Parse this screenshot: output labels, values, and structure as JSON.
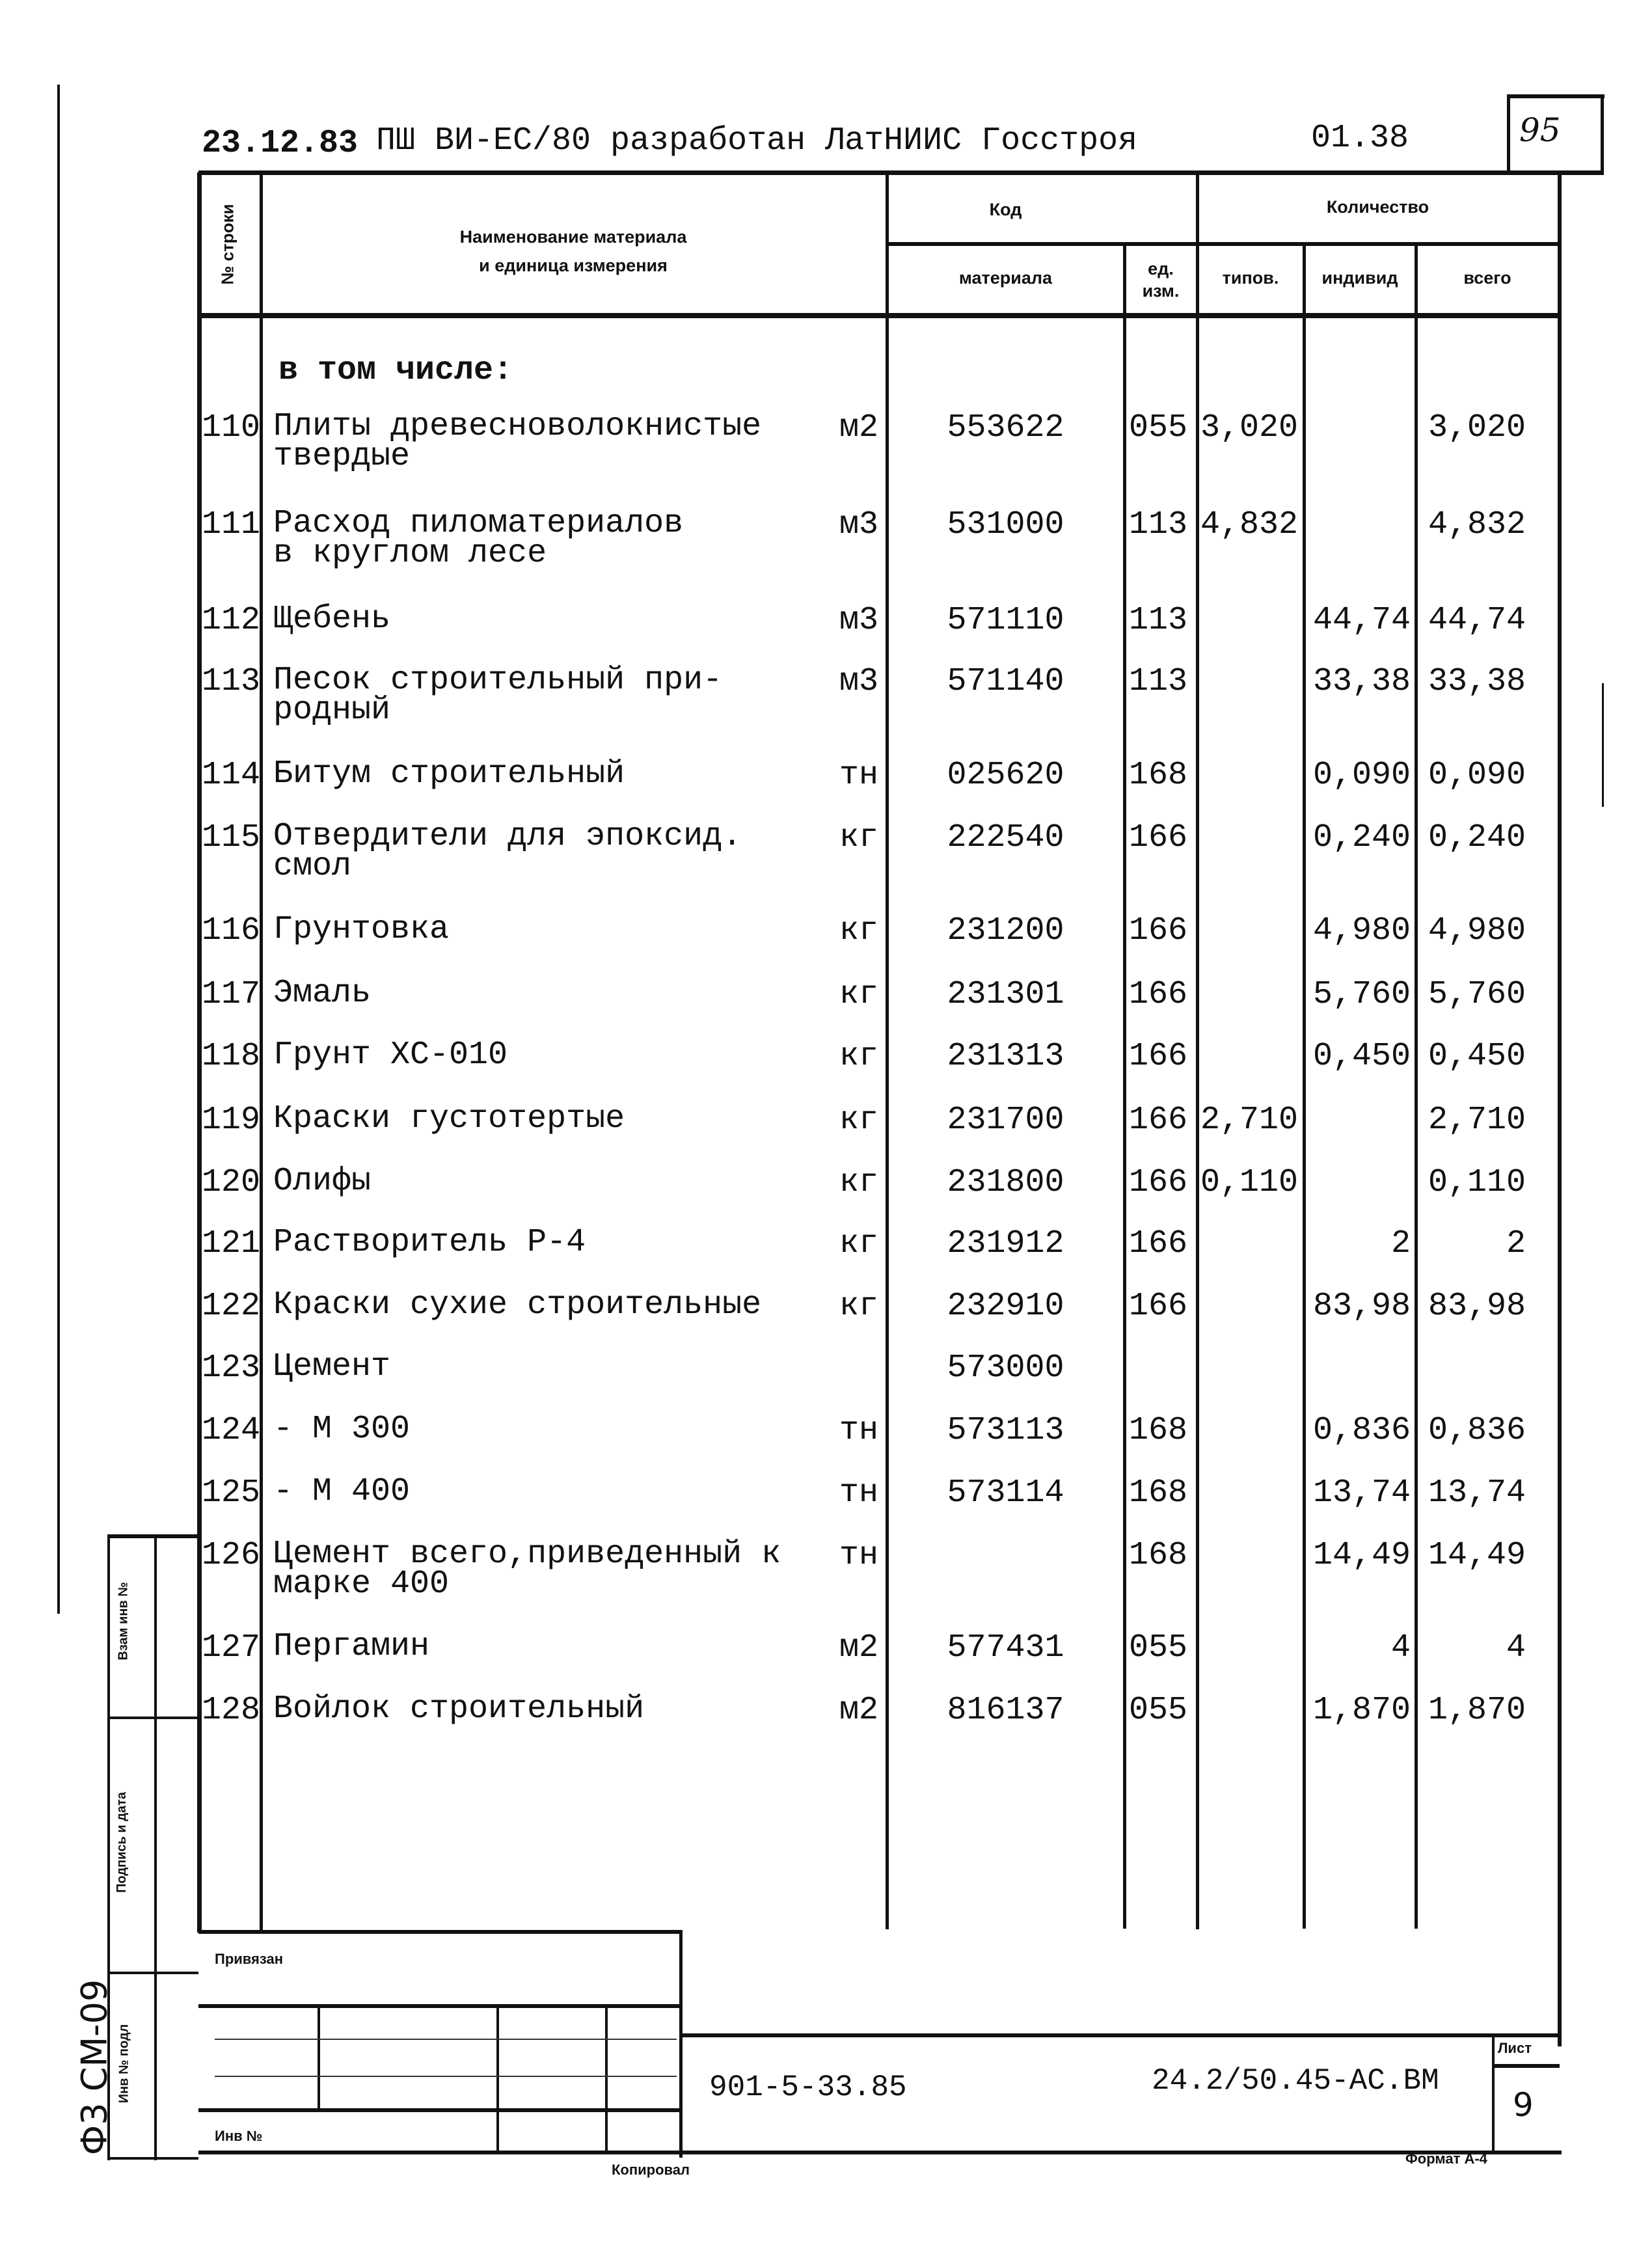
{
  "header": {
    "date": "23.12.83",
    "title": "ПШ ВИ-ЕС/80 разработан ЛатНИИС Госстроя",
    "code": "01.38",
    "page_handwritten": "95"
  },
  "columns": {
    "row_no": "№ строки",
    "name": "Наименование материала\nи единица измерения",
    "code_group": "Код",
    "code_material": "материала",
    "code_unit": "ед.\nизм.",
    "qty_group": "Количество",
    "qty_typical": "типов.",
    "qty_individual": "индивид",
    "qty_total": "всего"
  },
  "section_label": "в том числе:",
  "rows": [
    {
      "no": "110",
      "name": "Плиты древесноволокнистые\nтвердые",
      "unit": "м2",
      "material": "553622",
      "unit_code": "055",
      "typical": "3,020",
      "individual": "",
      "total": "3,020"
    },
    {
      "no": "111",
      "name": "Расход пиломатериалов\nв круглом лесе",
      "unit": "м3",
      "material": "531000",
      "unit_code": "113",
      "typical": "4,832",
      "individual": "",
      "total": "4,832"
    },
    {
      "no": "112",
      "name": "Щебень",
      "unit": "м3",
      "material": "571110",
      "unit_code": "113",
      "typical": "",
      "individual": "44,74",
      "total": "44,74"
    },
    {
      "no": "113",
      "name": "Песок строительный при-\nродный",
      "unit": "м3",
      "material": "571140",
      "unit_code": "113",
      "typical": "",
      "individual": "33,38",
      "total": "33,38"
    },
    {
      "no": "114",
      "name": "Битум строительный",
      "unit": "тн",
      "material": "025620",
      "unit_code": "168",
      "typical": "",
      "individual": "0,090",
      "total": "0,090"
    },
    {
      "no": "115",
      "name": "Отвердители для эпоксид.\nсмол",
      "unit": "кг",
      "material": "222540",
      "unit_code": "166",
      "typical": "",
      "individual": "0,240",
      "total": "0,240"
    },
    {
      "no": "116",
      "name": "Грунтовка",
      "unit": "кг",
      "material": "231200",
      "unit_code": "166",
      "typical": "",
      "individual": "4,980",
      "total": "4,980"
    },
    {
      "no": "117",
      "name": "Эмаль",
      "unit": "кг",
      "material": "231301",
      "unit_code": "166",
      "typical": "",
      "individual": "5,760",
      "total": "5,760"
    },
    {
      "no": "118",
      "name": "Грунт ХС-010",
      "unit": "кг",
      "material": "231313",
      "unit_code": "166",
      "typical": "",
      "individual": "0,450",
      "total": "0,450"
    },
    {
      "no": "119",
      "name": "Краски густотертые",
      "unit": "кг",
      "material": "231700",
      "unit_code": "166",
      "typical": "2,710",
      "individual": "",
      "total": "2,710"
    },
    {
      "no": "120",
      "name": "Олифы",
      "unit": "кг",
      "material": "231800",
      "unit_code": "166",
      "typical": "0,110",
      "individual": "",
      "total": "0,110"
    },
    {
      "no": "121",
      "name": "Растворитель Р-4",
      "unit": "кг",
      "material": "231912",
      "unit_code": "166",
      "typical": "",
      "individual": "2",
      "total": "2"
    },
    {
      "no": "122",
      "name": "Краски сухие строительные",
      "unit": "кг",
      "material": "232910",
      "unit_code": "166",
      "typical": "",
      "individual": "83,98",
      "total": "83,98"
    },
    {
      "no": "123",
      "name": "Цемент",
      "unit": "",
      "material": "573000",
      "unit_code": "",
      "typical": "",
      "individual": "",
      "total": ""
    },
    {
      "no": "124",
      "name": "- М 300",
      "unit": "тн",
      "material": "573113",
      "unit_code": "168",
      "typical": "",
      "individual": "0,836",
      "total": "0,836"
    },
    {
      "no": "125",
      "name": "- М 400",
      "unit": "тн",
      "material": "573114",
      "unit_code": "168",
      "typical": "",
      "individual": "13,74",
      "total": "13,74"
    },
    {
      "no": "126",
      "name": "Цемент всего,приведенный к\nмарке 400",
      "unit": "тн",
      "material": "",
      "unit_code": "168",
      "typical": "",
      "individual": "14,49",
      "total": "14,49"
    },
    {
      "no": "127",
      "name": "Пергамин",
      "unit": "м2",
      "material": "577431",
      "unit_code": "055",
      "typical": "",
      "individual": "4",
      "total": "4"
    },
    {
      "no": "128",
      "name": "Войлок строительный",
      "unit": "м2",
      "material": "816137",
      "unit_code": "055",
      "typical": "",
      "individual": "1,870",
      "total": "1,870"
    }
  ],
  "stamp": {
    "attached": "Привязан",
    "inv_no": "Инв №",
    "project": "901-5-33.85",
    "doc_code": "24.2/50.45-АС.ВМ",
    "sheet_label": "Лист",
    "sheet": "9",
    "copied": "Копировал",
    "format": "Формат А-4"
  },
  "side": {
    "form": "Ф3 СМ-09",
    "inv_orig": "Инв № подл",
    "sign_date": "Подпись и дата",
    "inv_repl": "Взам инв №"
  }
}
